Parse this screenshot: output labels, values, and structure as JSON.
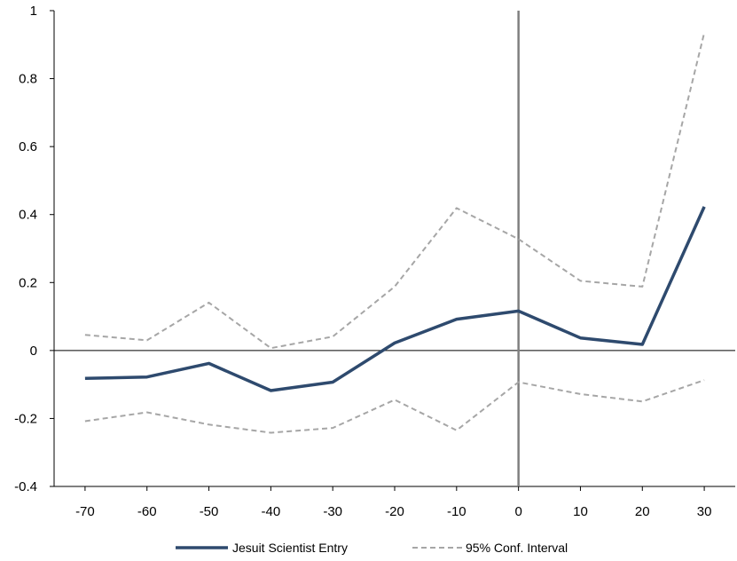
{
  "chart_data": {
    "type": "line",
    "x": [
      -70,
      -60,
      -50,
      -40,
      -30,
      -20,
      -10,
      0,
      10,
      20,
      30
    ],
    "series": [
      {
        "name": "Jesuit Scientist Entry",
        "values": [
          -0.082,
          -0.078,
          -0.038,
          -0.118,
          -0.093,
          0.022,
          0.092,
          0.116,
          0.037,
          0.018,
          0.423
        ],
        "color": "#2e4a6e",
        "style": "solid"
      },
      {
        "name": "95% Conf. Interval",
        "values": [
          0.046,
          0.03,
          0.141,
          0.007,
          0.041,
          0.188,
          0.419,
          0.328,
          0.205,
          0.188,
          0.935
        ],
        "color": "#a6a6a6",
        "style": "dashed"
      },
      {
        "name": "",
        "values": [
          -0.208,
          -0.182,
          -0.218,
          -0.242,
          -0.228,
          -0.145,
          -0.235,
          -0.093,
          -0.128,
          -0.15,
          -0.087
        ],
        "color": "#a6a6a6",
        "style": "dashed"
      }
    ],
    "xticks": [
      "-70",
      "-60",
      "-50",
      "-40",
      "-30",
      "-20",
      "-10",
      "0",
      "10",
      "20",
      "30"
    ],
    "yticks": [
      "1",
      "0.8",
      "0.6",
      "0.4",
      "0.2",
      "0",
      "-0.2",
      "-0.4"
    ],
    "ytick_values": [
      1,
      0.8,
      0.6,
      0.4,
      0.2,
      0,
      -0.2,
      -0.4
    ],
    "xlim": [
      -75,
      35
    ],
    "ylim": [
      -0.4,
      1
    ],
    "vline_x": 0,
    "grid": false,
    "legend": {
      "placement": "bottom-center",
      "entries": [
        "Jesuit Scientist Entry",
        "95% Conf. Interval"
      ]
    },
    "title": "",
    "xlabel": "",
    "ylabel": ""
  }
}
